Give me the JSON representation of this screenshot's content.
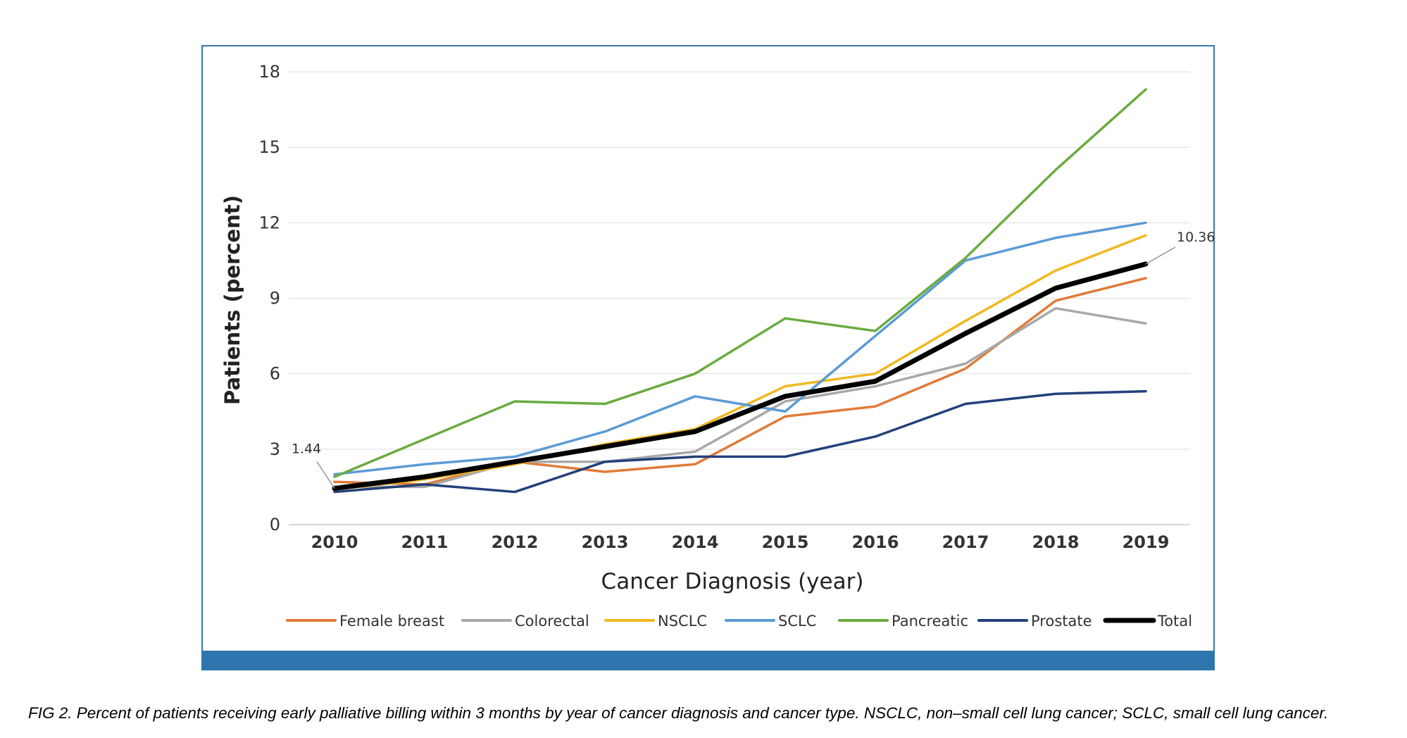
{
  "caption": "FIG 2. Percent of patients receiving early palliative billing within 3 months by year of cancer diagnosis and cancer type. NSCLC, non–small cell lung cancer; SCLC, small cell lung cancer.",
  "chart_data": {
    "type": "line",
    "title": "",
    "xlabel": "Cancer Diagnosis (year)",
    "ylabel": "Patients (percent)",
    "x": [
      "2010",
      "2011",
      "2012",
      "2013",
      "2014",
      "2015",
      "2016",
      "2017",
      "2018",
      "2019"
    ],
    "ylim": [
      0,
      18
    ],
    "yticks": [
      0,
      3,
      6,
      9,
      12,
      15,
      18
    ],
    "grid": true,
    "legend_position": "bottom",
    "series": [
      {
        "name": "Female breast",
        "color": "#e07b39",
        "values": [
          1.7,
          1.6,
          2.5,
          2.1,
          2.4,
          4.3,
          4.7,
          6.2,
          8.9,
          9.8
        ]
      },
      {
        "name": "Colorectal",
        "color": "#a8a8a8",
        "values": [
          1.5,
          1.5,
          2.5,
          2.5,
          2.9,
          4.9,
          5.5,
          6.4,
          8.6,
          8.0
        ]
      },
      {
        "name": "NSCLC",
        "color": "#f0b820",
        "values": [
          1.4,
          1.8,
          2.4,
          3.2,
          3.8,
          5.5,
          6.0,
          8.1,
          10.1,
          11.5
        ]
      },
      {
        "name": "SCLC",
        "color": "#5b9bd5",
        "values": [
          2.0,
          2.4,
          2.7,
          3.7,
          5.1,
          4.5,
          7.5,
          10.5,
          11.4,
          12.0
        ]
      },
      {
        "name": "Pancreatic",
        "color": "#6aab3f",
        "values": [
          1.9,
          3.4,
          4.9,
          4.8,
          6.0,
          8.2,
          7.7,
          10.6,
          14.1,
          17.3
        ]
      },
      {
        "name": "Prostate",
        "color": "#23407a",
        "values": [
          1.3,
          1.6,
          1.3,
          2.5,
          2.7,
          2.7,
          3.5,
          4.8,
          5.2,
          5.3
        ]
      },
      {
        "name": "Total",
        "color": "#000000",
        "values": [
          1.44,
          1.9,
          2.5,
          3.1,
          3.7,
          5.1,
          5.7,
          7.6,
          9.4,
          10.36
        ]
      }
    ],
    "annotations": [
      {
        "text": "1.44",
        "series": "Total",
        "x": "2010",
        "y": 1.44
      },
      {
        "text": "10.36",
        "series": "Total",
        "x": "2019",
        "y": 10.36
      }
    ]
  }
}
